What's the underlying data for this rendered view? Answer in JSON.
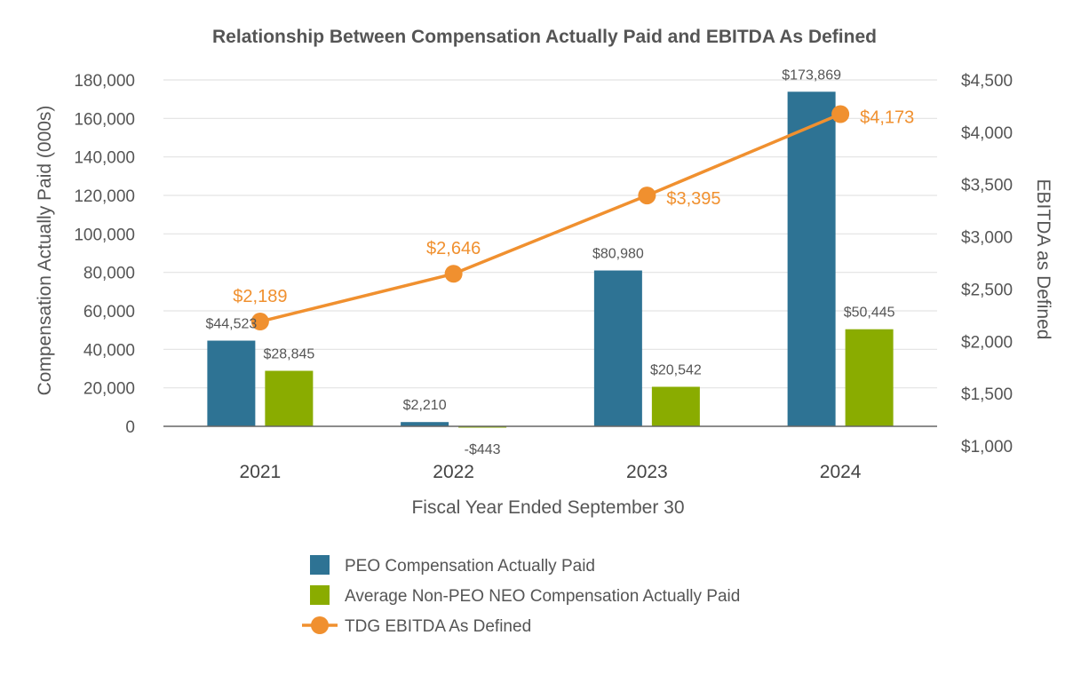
{
  "chart_data": {
    "type": "bar",
    "title": "Relationship Between Compensation Actually Paid and EBITDA As Defined",
    "xlabel": "Fiscal Year Ended September 30",
    "ylabel": "Compensation Actually Paid (000s)",
    "y2label": "EBITDA as Defined",
    "categories": [
      "2021",
      "2022",
      "2023",
      "2024"
    ],
    "ylim": [
      0,
      180000
    ],
    "yticks": [
      0,
      20000,
      40000,
      60000,
      80000,
      100000,
      120000,
      140000,
      160000,
      180000
    ],
    "ytick_labels": [
      "0",
      "20,000",
      "40,000",
      "60,000",
      "80,000",
      "100,000",
      "120,000",
      "140,000",
      "160,000",
      "180,000"
    ],
    "y2lim": [
      1000,
      4500
    ],
    "y2ticks": [
      1000,
      1500,
      2000,
      2500,
      3000,
      3500,
      4000,
      4500
    ],
    "y2tick_labels": [
      "$1,000",
      "$1,500",
      "$2,000",
      "$2,500",
      "$3,000",
      "$3,500",
      "$4,000",
      "$4,500"
    ],
    "grid": true,
    "legend_position": "bottom",
    "series": [
      {
        "name": "PEO Compensation Actually Paid",
        "type": "bar",
        "axis": "left",
        "color": "#2e7394",
        "values": [
          44523,
          2210,
          80980,
          173869
        ],
        "labels": [
          "$44,523",
          "$2,210",
          "$80,980",
          "$173,869"
        ]
      },
      {
        "name": "Average Non-PEO NEO Compensation Actually Paid",
        "type": "bar",
        "axis": "left",
        "color": "#8aac00",
        "values": [
          28845,
          -443,
          20542,
          50445
        ],
        "labels": [
          "$28,845",
          "-$443",
          "$20,542",
          "$50,445"
        ]
      },
      {
        "name": "TDG EBITDA As Defined",
        "type": "line",
        "axis": "right",
        "color": "#f0902f",
        "values": [
          2189,
          2646,
          3395,
          4173
        ],
        "labels": [
          "$2,189",
          "$2,646",
          "$3,395",
          "$4,173"
        ]
      }
    ]
  }
}
